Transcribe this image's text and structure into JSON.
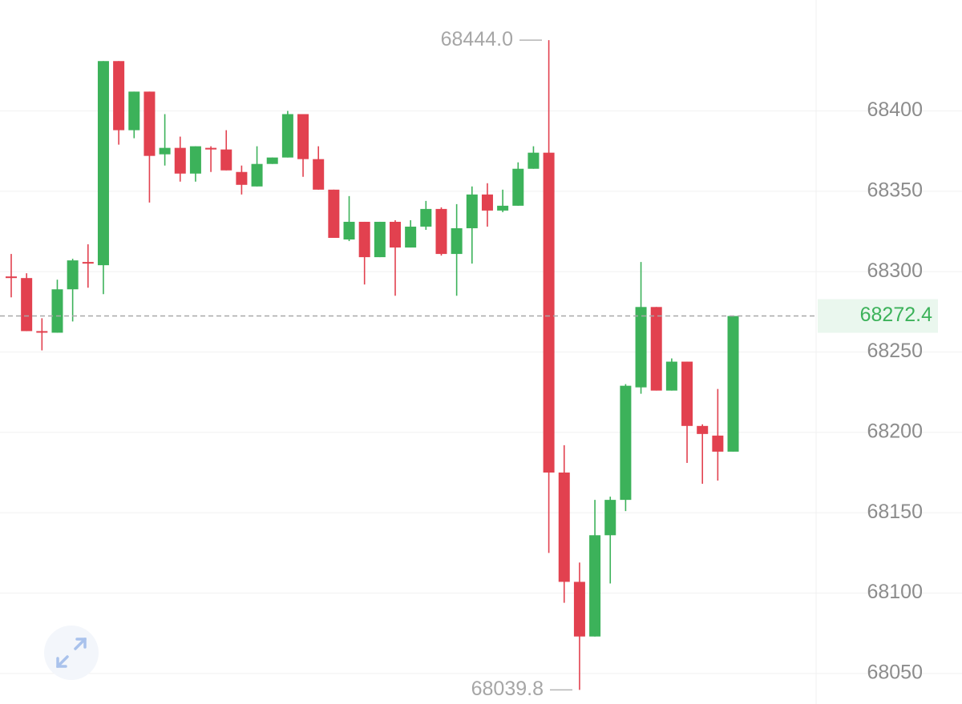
{
  "chart_data": {
    "type": "candlestick",
    "open": [
      68297,
      68296,
      68263,
      68262,
      68289,
      68306,
      68304,
      68431,
      68388,
      68412,
      68373,
      68377,
      68361,
      68377,
      68376,
      68362,
      68353,
      68367,
      68371,
      68398,
      68370,
      68351,
      68320,
      68331,
      68309,
      68331,
      68315,
      68328,
      68339,
      68311,
      68327,
      68348,
      68338,
      68341,
      68364,
      68374,
      68175,
      68107,
      68073,
      68136,
      68158,
      68228,
      68278,
      68226,
      68244,
      68204,
      68198,
      68188
    ],
    "high": [
      68311,
      68299,
      68271,
      68295,
      68308,
      68317,
      68431,
      68431,
      68412,
      68412,
      68398,
      68384,
      68378,
      68378,
      68388,
      68366,
      68378,
      68371,
      68400,
      68398,
      68378,
      68351,
      68347,
      68331,
      68331,
      68332,
      68332,
      68344,
      68340,
      68342,
      68353,
      68355,
      68351,
      68368,
      68378,
      68444,
      68192,
      68119,
      68158,
      68160,
      68230,
      68306,
      68278,
      68246,
      68244,
      68205,
      68227,
      68272.4
    ],
    "low": [
      68284,
      68263,
      68251,
      68262,
      68269,
      68290,
      68286,
      68379,
      68383,
      68343,
      68366,
      68356,
      68356,
      68362,
      68363,
      68348,
      68353,
      68367,
      68371,
      68359,
      68351,
      68321,
      68319,
      68292,
      68309,
      68285,
      68315,
      68326,
      68310,
      68285,
      68305,
      68328,
      68337,
      68341,
      68364,
      68125,
      68094,
      68039.8,
      68073,
      68106,
      68151,
      68224,
      68226,
      68226,
      68181,
      68168,
      68170,
      68188
    ],
    "close": [
      68296,
      68263,
      68262,
      68289,
      68307,
      68305,
      68431,
      68388,
      68412,
      68372,
      68377,
      68361,
      68378,
      68376,
      68363,
      68354,
      68367,
      68371,
      68398,
      68370,
      68351,
      68321,
      68331,
      68309,
      68331,
      68315,
      68328,
      68339,
      68311,
      68327,
      68348,
      68338,
      68341,
      68364,
      68374,
      68175,
      68107,
      68073,
      68136,
      68158,
      68229,
      68278,
      68226,
      68244,
      68204,
      68199,
      68188,
      68272.4
    ],
    "up_color": "#3cb25a",
    "down_color": "#e2414f",
    "ylim": [
      68031,
      68469
    ],
    "yticks": [
      68050,
      68100,
      68150,
      68200,
      68250,
      68300,
      68350,
      68400
    ],
    "grid": true,
    "high_annotation": {
      "value": 68444,
      "label": "68444.0"
    },
    "low_annotation": {
      "value": 68039.8,
      "label": "68039.8"
    },
    "last_price": 68272.4
  }
}
